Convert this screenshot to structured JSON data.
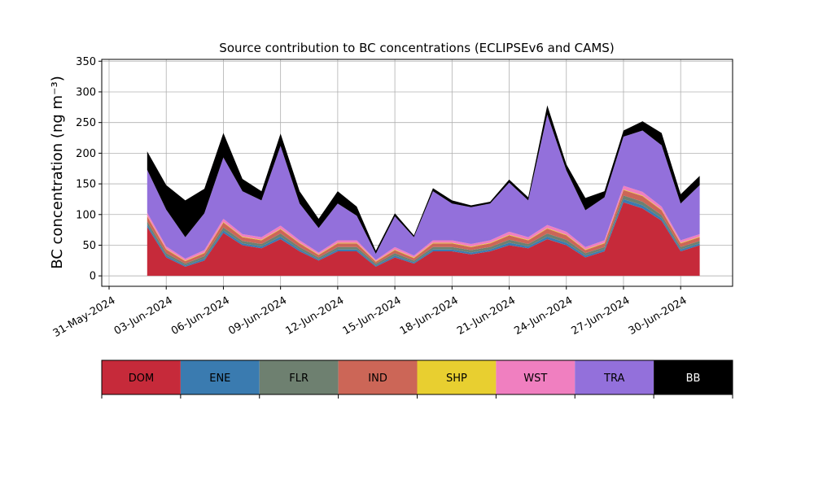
{
  "chart_data": {
    "type": "stacked_area",
    "title": "Source contribution to BC concentrations (ECLIPSEv6 and CAMS)",
    "y_label": "BC concentration (ng m⁻³)",
    "x": [
      "2024-06-02",
      "2024-06-03",
      "2024-06-04",
      "2024-06-05",
      "2024-06-06",
      "2024-06-07",
      "2024-06-08",
      "2024-06-09",
      "2024-06-10",
      "2024-06-11",
      "2024-06-12",
      "2024-06-13",
      "2024-06-14",
      "2024-06-15",
      "2024-06-16",
      "2024-06-17",
      "2024-06-18",
      "2024-06-19",
      "2024-06-20",
      "2024-06-21",
      "2024-06-22",
      "2024-06-23",
      "2024-06-24",
      "2024-06-25",
      "2024-06-26",
      "2024-06-27",
      "2024-06-28",
      "2024-06-29",
      "2024-06-30",
      "2024-07-01"
    ],
    "series": [
      {
        "name": "DOM",
        "color": "#c62a3a",
        "values": [
          80,
          30,
          15,
          25,
          70,
          50,
          45,
          60,
          40,
          25,
          40,
          40,
          15,
          30,
          20,
          40,
          40,
          35,
          40,
          50,
          45,
          60,
          50,
          30,
          40,
          120,
          110,
          90,
          40,
          50
        ]
      },
      {
        "name": "ENE",
        "color": "#3a7bb0",
        "values": [
          4,
          3,
          2,
          3,
          4,
          3,
          3,
          4,
          3,
          2,
          3,
          3,
          2,
          3,
          2,
          3,
          3,
          3,
          3,
          4,
          3,
          4,
          4,
          3,
          3,
          5,
          5,
          4,
          3,
          3
        ]
      },
      {
        "name": "FLR",
        "color": "#6e8070",
        "values": [
          5,
          4,
          3,
          4,
          5,
          4,
          4,
          5,
          4,
          3,
          4,
          4,
          3,
          4,
          3,
          4,
          4,
          4,
          4,
          5,
          4,
          5,
          5,
          4,
          4,
          6,
          6,
          5,
          4,
          4
        ]
      },
      {
        "name": "IND",
        "color": "#cc6657",
        "values": [
          8,
          6,
          4,
          5,
          8,
          6,
          6,
          7,
          6,
          4,
          6,
          6,
          3,
          5,
          4,
          6,
          6,
          5,
          6,
          7,
          6,
          8,
          7,
          5,
          6,
          9,
          9,
          8,
          6,
          6
        ]
      },
      {
        "name": "SHP",
        "color": "#e8cf30",
        "values": [
          1,
          1,
          1,
          1,
          1,
          1,
          1,
          1,
          1,
          1,
          1,
          1,
          1,
          1,
          1,
          1,
          1,
          1,
          1,
          1,
          1,
          1,
          1,
          1,
          1,
          1,
          1,
          1,
          1,
          1
        ]
      },
      {
        "name": "WST",
        "color": "#f07fc0",
        "values": [
          5,
          4,
          3,
          4,
          5,
          4,
          4,
          5,
          4,
          3,
          4,
          4,
          2,
          4,
          3,
          4,
          4,
          4,
          4,
          5,
          4,
          5,
          5,
          4,
          4,
          6,
          6,
          5,
          4,
          4
        ]
      },
      {
        "name": "TRA",
        "color": "#9370db",
        "values": [
          70,
          60,
          35,
          60,
          100,
          70,
          60,
          130,
          60,
          40,
          60,
          40,
          10,
          50,
          30,
          80,
          60,
          60,
          60,
          80,
          60,
          180,
          100,
          60,
          70,
          80,
          100,
          100,
          60,
          80
        ]
      },
      {
        "name": "BB",
        "color": "#000000",
        "values": [
          30,
          40,
          60,
          40,
          40,
          20,
          15,
          20,
          20,
          15,
          20,
          15,
          5,
          5,
          3,
          5,
          5,
          3,
          3,
          5,
          5,
          15,
          10,
          20,
          10,
          10,
          15,
          20,
          15,
          15
        ]
      }
    ],
    "xlim": [
      "2024-05-31",
      "2024-07-02"
    ],
    "xticks": [
      {
        "value": "2024-05-31",
        "label": "31-May-2024"
      },
      {
        "value": "2024-06-03",
        "label": "03-Jun-2024"
      },
      {
        "value": "2024-06-06",
        "label": "06-Jun-2024"
      },
      {
        "value": "2024-06-09",
        "label": "09-Jun-2024"
      },
      {
        "value": "2024-06-12",
        "label": "12-Jun-2024"
      },
      {
        "value": "2024-06-15",
        "label": "15-Jun-2024"
      },
      {
        "value": "2024-06-18",
        "label": "18-Jun-2024"
      },
      {
        "value": "2024-06-21",
        "label": "21-Jun-2024"
      },
      {
        "value": "2024-06-24",
        "label": "24-Jun-2024"
      },
      {
        "value": "2024-06-27",
        "label": "27-Jun-2024"
      },
      {
        "value": "2024-06-30",
        "label": "30-Jun-2024"
      }
    ],
    "ylim": [
      -17,
      353
    ],
    "yticks": [
      0,
      50,
      100,
      150,
      200,
      250,
      300,
      350
    ],
    "grid": true
  }
}
